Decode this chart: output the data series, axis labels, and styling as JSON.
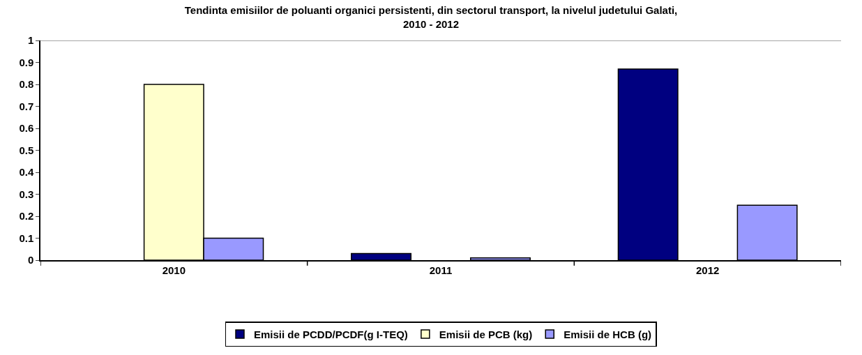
{
  "chart_data": {
    "type": "bar",
    "title": "Tendinta emisiilor de poluanti organici persistenti, din sectorul transport, la nivelul judetului Galati,\n2010 - 2012",
    "categories": [
      "2010",
      "2011",
      "2012"
    ],
    "series": [
      {
        "name": "Emisii de PCDD/PCDF(g I-TEQ)",
        "color": "#000080",
        "values": [
          null,
          0.03,
          0.87
        ]
      },
      {
        "name": "Emisii de PCB (kg)",
        "color": "#ffffcc",
        "values": [
          0.8,
          null,
          null
        ]
      },
      {
        "name": "Emisii de HCB (g)",
        "color": "#9999ff",
        "values": [
          0.1,
          0.01,
          0.25
        ]
      }
    ],
    "ylim": [
      0,
      1
    ],
    "yticks": [
      0,
      0.1,
      0.2,
      0.3,
      0.4,
      0.5,
      0.6,
      0.7,
      0.8,
      0.9,
      1
    ],
    "grid": false,
    "legend": "bottom"
  }
}
